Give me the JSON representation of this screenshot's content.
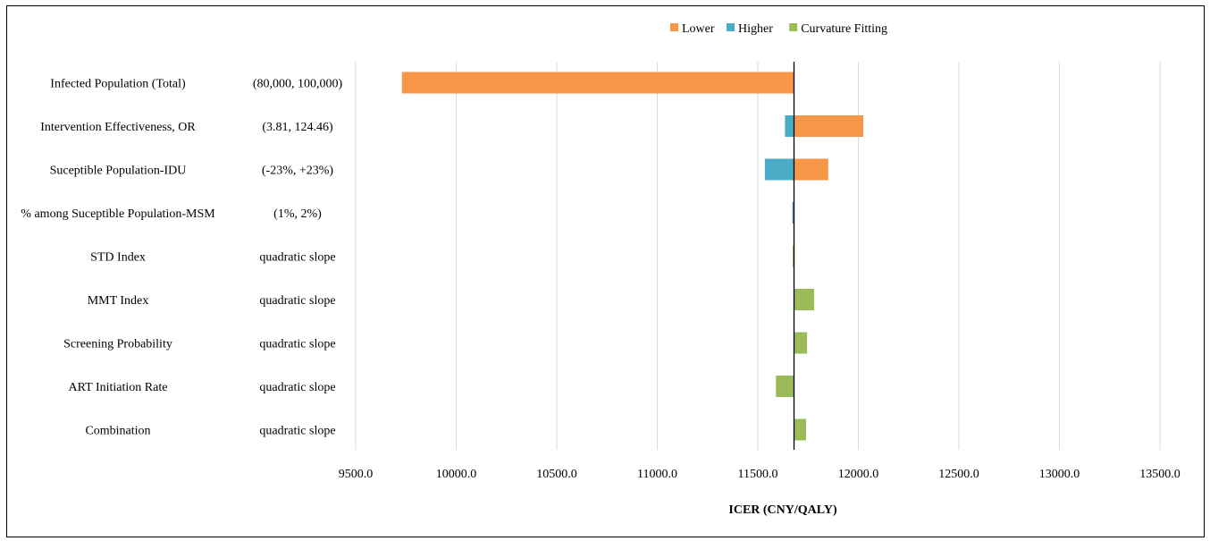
{
  "chart_data": {
    "type": "tornado",
    "baseline": 11680,
    "xlim": [
      9500,
      13500
    ],
    "xticks": [
      9500,
      10000,
      10500,
      11000,
      11500,
      12000,
      12500,
      13000,
      13500
    ],
    "xtick_labels": [
      "9500.0",
      "10000.0",
      "10500.0",
      "11000.0",
      "11500.0",
      "12000.0",
      "12500.0",
      "13000.0",
      "13500.0"
    ],
    "xlabel": "ICER (CNY/QALY)",
    "grid": "vertical",
    "legend_position": "top",
    "legend": [
      {
        "name": "Lower",
        "color": "#F79646"
      },
      {
        "name": "Higher",
        "color": "#4BACC6"
      },
      {
        "name": "Curvature Fitting",
        "color": "#9BBB59"
      }
    ],
    "rows": [
      {
        "label": "Infected Population (Total)",
        "range": "(80,000, 100,000)",
        "bars": [
          {
            "series": "Lower",
            "from": 11680,
            "to": 9730
          }
        ]
      },
      {
        "label": "Intervention Effectiveness, OR",
        "range": "(3.81, 124.46)",
        "bars": [
          {
            "series": "Higher",
            "from": 11680,
            "to": 11635
          },
          {
            "series": "Lower",
            "from": 11680,
            "to": 12025
          }
        ]
      },
      {
        "label": "Suceptible Population-IDU",
        "range": "(-23%, +23%)",
        "bars": [
          {
            "series": "Higher",
            "from": 11680,
            "to": 11535
          },
          {
            "series": "Lower",
            "from": 11680,
            "to": 11850
          }
        ]
      },
      {
        "label": "% among Suceptible Population-MSM",
        "range": "(1%, 2%)",
        "bars": [
          {
            "series": "Higher",
            "from": 11680,
            "to": 11672
          }
        ]
      },
      {
        "label": "STD Index",
        "range": "quadratic slope",
        "bars": [
          {
            "series": "Curvature Fitting",
            "from": 11680,
            "to": 11674
          }
        ]
      },
      {
        "label": "MMT Index",
        "range": "quadratic slope",
        "bars": [
          {
            "series": "Curvature Fitting",
            "from": 11680,
            "to": 11780
          }
        ]
      },
      {
        "label": "Screening Probability",
        "range": "quadratic slope",
        "bars": [
          {
            "series": "Curvature Fitting",
            "from": 11680,
            "to": 11745
          }
        ]
      },
      {
        "label": "ART Initiation Rate",
        "range": "quadratic slope",
        "bars": [
          {
            "series": "Curvature Fitting",
            "from": 11680,
            "to": 11590
          }
        ]
      },
      {
        "label": "Combination",
        "range": "quadratic slope",
        "bars": [
          {
            "series": "Curvature Fitting",
            "from": 11680,
            "to": 11740
          }
        ]
      }
    ]
  }
}
